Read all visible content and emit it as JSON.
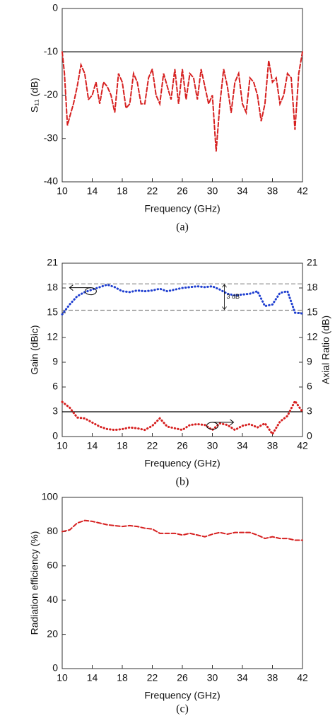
{
  "chart_data": [
    {
      "type": "line",
      "caption": "(a)",
      "x_label": "Frequency (GHz)",
      "y_label": "S₁₁ (dB)",
      "xlim": [
        10,
        42
      ],
      "xticks": [
        10,
        14,
        18,
        22,
        26,
        30,
        34,
        38,
        42
      ],
      "ylim": [
        -40,
        0
      ],
      "yticks": [
        0,
        -10,
        -20,
        -30,
        -40
      ],
      "hlines": [
        {
          "value": -10,
          "color": "#000000",
          "style": "solid"
        }
      ],
      "x": [
        10,
        10.3,
        10.7,
        11,
        11.5,
        12,
        12.5,
        13,
        13.5,
        14,
        14.5,
        15,
        15.5,
        16,
        16.5,
        17,
        17.5,
        18,
        18.5,
        19,
        19.5,
        20,
        20.5,
        21,
        21.5,
        22,
        22.5,
        23,
        23.5,
        24,
        24.5,
        25,
        25.5,
        26,
        26.5,
        27,
        27.5,
        28,
        28.5,
        29,
        29.5,
        30,
        30.5,
        31,
        31.5,
        32,
        32.5,
        33,
        33.5,
        34,
        34.5,
        35,
        35.5,
        36,
        36.5,
        37,
        37.5,
        38,
        38.5,
        39,
        39.5,
        40,
        40.5,
        41,
        41.5,
        42
      ],
      "series": [
        {
          "color": "#d62020",
          "style": "dashed",
          "values": [
            -10,
            -15,
            -27,
            -25,
            -22,
            -18,
            -13,
            -15,
            -21,
            -20,
            -17,
            -22,
            -17,
            -18,
            -20,
            -24,
            -15,
            -17,
            -23,
            -22,
            -15,
            -17,
            -22,
            -22,
            -16,
            -14,
            -20,
            -22,
            -15,
            -18,
            -21,
            -14,
            -22,
            -14,
            -21,
            -15,
            -16,
            -21,
            -14,
            -18,
            -22,
            -20,
            -33,
            -22,
            -14,
            -18,
            -24,
            -17,
            -15,
            -22,
            -24,
            -16,
            -17,
            -20,
            -26,
            -22,
            -12,
            -17,
            -16,
            -22,
            -20,
            -15,
            -16,
            -28,
            -15,
            -10
          ]
        }
      ]
    },
    {
      "type": "line",
      "caption": "(b)",
      "x_label": "Frequency (GHz)",
      "y_label": "Gain (dBic)",
      "y2_label": "Axial Ratio (dB)",
      "xlim": [
        10,
        42
      ],
      "xticks": [
        10,
        14,
        18,
        22,
        26,
        30,
        34,
        38,
        42
      ],
      "ylim": [
        0,
        21
      ],
      "yticks": [
        0,
        3,
        6,
        9,
        12,
        15,
        18,
        21
      ],
      "y2lim": [
        0,
        21
      ],
      "y2ticks": [
        0,
        3,
        6,
        9,
        12,
        15,
        18,
        21
      ],
      "hlines": [
        {
          "value": 18.5,
          "color": "#888888",
          "style": "dashed"
        },
        {
          "value": 15.3,
          "color": "#888888",
          "style": "dashed"
        },
        {
          "value": 3,
          "color": "#000000",
          "style": "solid"
        }
      ],
      "annotation": "3 dB",
      "x": [
        10,
        11,
        12,
        13,
        14,
        15,
        16,
        17,
        18,
        19,
        20,
        21,
        22,
        23,
        24,
        25,
        26,
        27,
        28,
        29,
        30,
        31,
        32,
        33,
        34,
        35,
        36,
        37,
        38,
        39,
        40,
        41,
        42
      ],
      "series": [
        {
          "color": "#1f3fd0",
          "style": "dotted",
          "values": [
            14.8,
            16,
            17,
            17.5,
            17.8,
            18.1,
            18.4,
            18.1,
            17.6,
            17.5,
            17.7,
            17.6,
            17.7,
            17.9,
            17.6,
            17.8,
            18,
            18.1,
            18.2,
            18.1,
            18.2,
            17.8,
            17.3,
            17.1,
            17.2,
            17.3,
            17.6,
            15.8,
            16,
            17.4,
            17.6,
            15,
            14.9
          ]
        },
        {
          "color": "#d62020",
          "style": "dotted",
          "axis": "y2",
          "values": [
            4.2,
            3.5,
            2.3,
            2.2,
            1.7,
            1.2,
            0.9,
            0.8,
            0.9,
            1.1,
            1.0,
            0.8,
            1.3,
            2.2,
            1.2,
            1.0,
            0.8,
            1.4,
            1.5,
            1.4,
            0.8,
            1.6,
            1.4,
            0.8,
            1.3,
            1.5,
            1.1,
            1.6,
            0.3,
            1.8,
            2.5,
            4.3,
            3
          ]
        }
      ]
    },
    {
      "type": "line",
      "caption": "(c)",
      "x_label": "Frequency (GHz)",
      "y_label": "Radiation efficiency (%)",
      "xlim": [
        10,
        42
      ],
      "xticks": [
        10,
        14,
        18,
        22,
        26,
        30,
        34,
        38,
        42
      ],
      "ylim": [
        0,
        100
      ],
      "yticks": [
        0,
        20,
        40,
        60,
        80,
        100
      ],
      "x": [
        10,
        11,
        12,
        13,
        14,
        15,
        16,
        17,
        18,
        19,
        20,
        21,
        22,
        23,
        24,
        25,
        26,
        27,
        28,
        29,
        30,
        31,
        32,
        33,
        34,
        35,
        36,
        37,
        38,
        39,
        40,
        41,
        42
      ],
      "series": [
        {
          "color": "#d62020",
          "style": "dashed",
          "values": [
            80,
            81,
            85,
            86.5,
            86,
            85,
            84,
            83.5,
            83,
            83.5,
            83,
            82,
            81.5,
            79,
            79,
            79,
            78,
            79,
            78,
            77,
            78.5,
            79.5,
            78.5,
            79.5,
            79.5,
            79.5,
            78,
            76,
            77,
            76,
            76,
            75,
            75
          ]
        }
      ]
    }
  ]
}
